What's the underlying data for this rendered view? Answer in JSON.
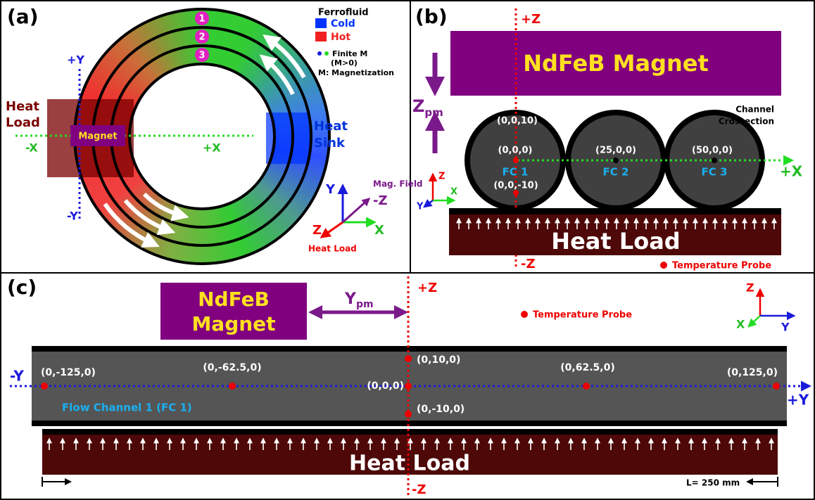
{
  "panel_a": {
    "label": "(a)",
    "legend": {
      "title": "Ferrofluid",
      "cold": "Cold",
      "hot": "Hot",
      "finite_m": "Finite M",
      "finite_m_condition": "(M>0)",
      "magnetization": "M: Magnetization"
    },
    "channel_numbers": [
      "1",
      "2",
      "3"
    ],
    "axes": {
      "plus_y": "+Y",
      "minus_y": "-Y",
      "minus_x": "-X",
      "plus_x": "+X"
    },
    "heat_load": [
      "Heat",
      "Load"
    ],
    "magnet": "Magnet",
    "heat_sink": [
      "Heat",
      "Sink"
    ],
    "coordinate_axes": {
      "y": "Y",
      "z": "Z",
      "x": "X",
      "minus_z": "-Z",
      "mag_field": "Mag. Field",
      "heat_load": "Heat Load"
    }
  },
  "panel_b": {
    "label": "(b)",
    "plus_z": "+Z",
    "minus_z": "-Z",
    "magnet": "NdFeB Magnet",
    "gap_label": {
      "symbol": "Z",
      "subscript": "pm"
    },
    "channel_crossection": [
      "Channel",
      "Crossection"
    ],
    "points": {
      "top": "(0,0,10)",
      "fc1_center": "(0,0,0)",
      "fc2_center": "(25,0,0)",
      "fc3_center": "(50,0,0)",
      "bottom": "(0,0,-10)"
    },
    "channels": [
      "FC 1",
      "FC 2",
      "FC 3"
    ],
    "plus_x": "+X",
    "small_axes": {
      "z": "Z",
      "x": "X",
      "y": "Y"
    },
    "heat_load": "Heat Load",
    "temperature_probe": "Temperature Probe"
  },
  "panel_c": {
    "label": "(c)",
    "magnet": [
      "NdFeB",
      "Magnet"
    ],
    "offset_label": {
      "symbol": "Y",
      "subscript": "pm"
    },
    "plus_z": "+Z",
    "minus_z": "-Z",
    "temperature_probe": "Temperature Probe",
    "small_axes": {
      "z": "Z",
      "y": "Y",
      "x": "X"
    },
    "points": {
      "top": "(0,10,0)",
      "p1": "(0,-125,0)",
      "p2": "(0,-62.5,0)",
      "p3": "(0,0,0)",
      "p4": "(0,62.5,0)",
      "p5": "(0,125,0)",
      "bottom": "(0,-10,0)"
    },
    "minus_y": "-Y",
    "plus_y": "+Y",
    "channel": "Flow Channel 1 (FC 1)",
    "heat_load": "Heat Load",
    "length": "L= 250 mm"
  }
}
